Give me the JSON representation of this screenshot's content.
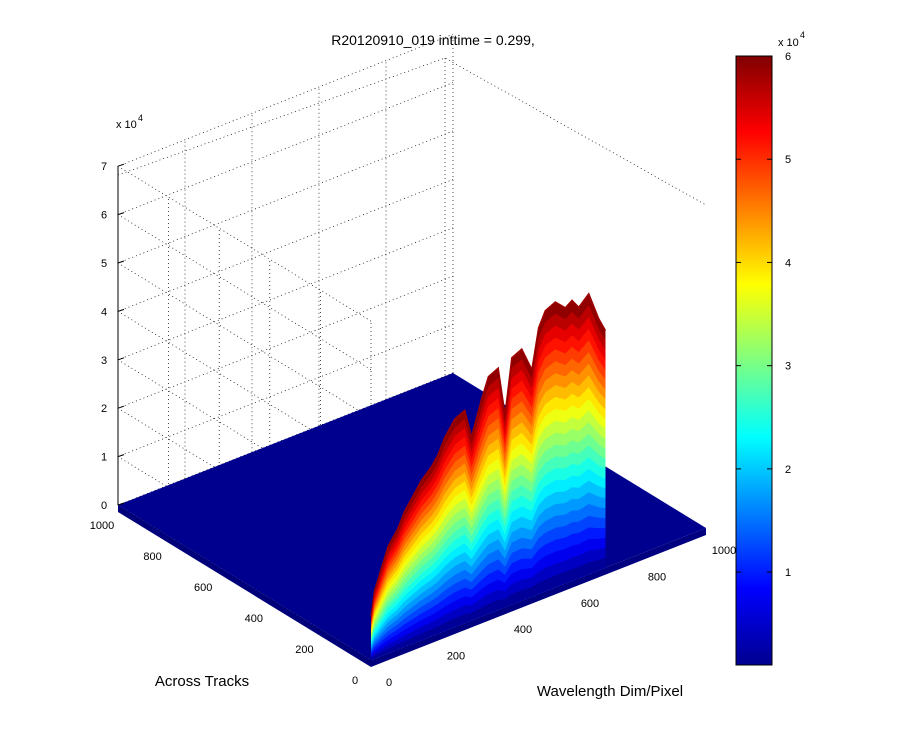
{
  "chart_data": {
    "type": "surface",
    "title": "R20120910_019 inttime = 0.299,",
    "xlabel": "Wavelength Dim/Pixel",
    "ylabel": "Across Tracks",
    "zlabel": "",
    "x_ticks": [
      "0",
      "200",
      "400",
      "600",
      "800",
      "1000"
    ],
    "y_ticks": [
      "0",
      "200",
      "400",
      "600",
      "800",
      "1000"
    ],
    "z_ticks": [
      "0",
      "1",
      "2",
      "3",
      "4",
      "5",
      "6",
      "7"
    ],
    "z_exponent": "x 10",
    "z_exponent_power": "4",
    "xlim": [
      0,
      1000
    ],
    "ylim": [
      0,
      1000
    ],
    "zlim": [
      0,
      70000
    ],
    "grid": true,
    "colormap": "jet",
    "colorbar": {
      "ticks": [
        "1",
        "2",
        "3",
        "4",
        "5",
        "6"
      ],
      "exponent": "x 10",
      "exponent_power": "4",
      "range": [
        1000,
        60000
      ],
      "position": "right"
    },
    "series": [
      {
        "x": [
          0,
          10,
          30,
          50,
          80,
          100,
          120,
          150,
          180,
          200,
          220,
          250,
          280,
          300,
          330,
          350,
          380,
          400,
          420,
          450,
          480,
          500,
          520,
          550,
          580,
          600,
          620,
          650,
          680,
          700
        ],
        "y_range": [
          0,
          1000
        ],
        "z_peak": [
          9000,
          14000,
          18000,
          22000,
          25000,
          28000,
          30000,
          33000,
          35000,
          37000,
          40000,
          43000,
          44000,
          38000,
          45000,
          49000,
          50000,
          40000,
          51000,
          52000,
          47000,
          55000,
          58000,
          59000,
          57000,
          58000,
          56000,
          58000,
          52000,
          49000
        ]
      }
    ]
  }
}
